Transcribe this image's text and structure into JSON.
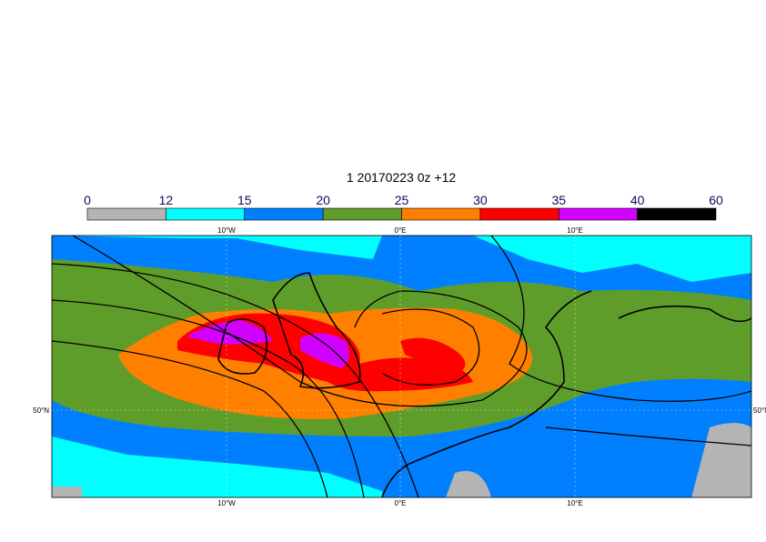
{
  "title": "1 20170223 0z +12",
  "colorbar": {
    "levels": [
      0,
      12,
      15,
      20,
      25,
      30,
      35,
      40,
      60
    ],
    "colors": [
      "#b4b4b4",
      "#00ffff",
      "#0080ff",
      "#5f9d2a",
      "#ff8000",
      "#ff0000",
      "#d200ff",
      "#000000"
    ]
  },
  "map": {
    "top_labels": [
      "10°W",
      "0°E",
      "10°E"
    ],
    "bottom_labels": [
      "10°W",
      "0°E",
      "10°E"
    ],
    "left_labels": [
      "50°N"
    ],
    "right_labels": [
      "50°N"
    ]
  }
}
